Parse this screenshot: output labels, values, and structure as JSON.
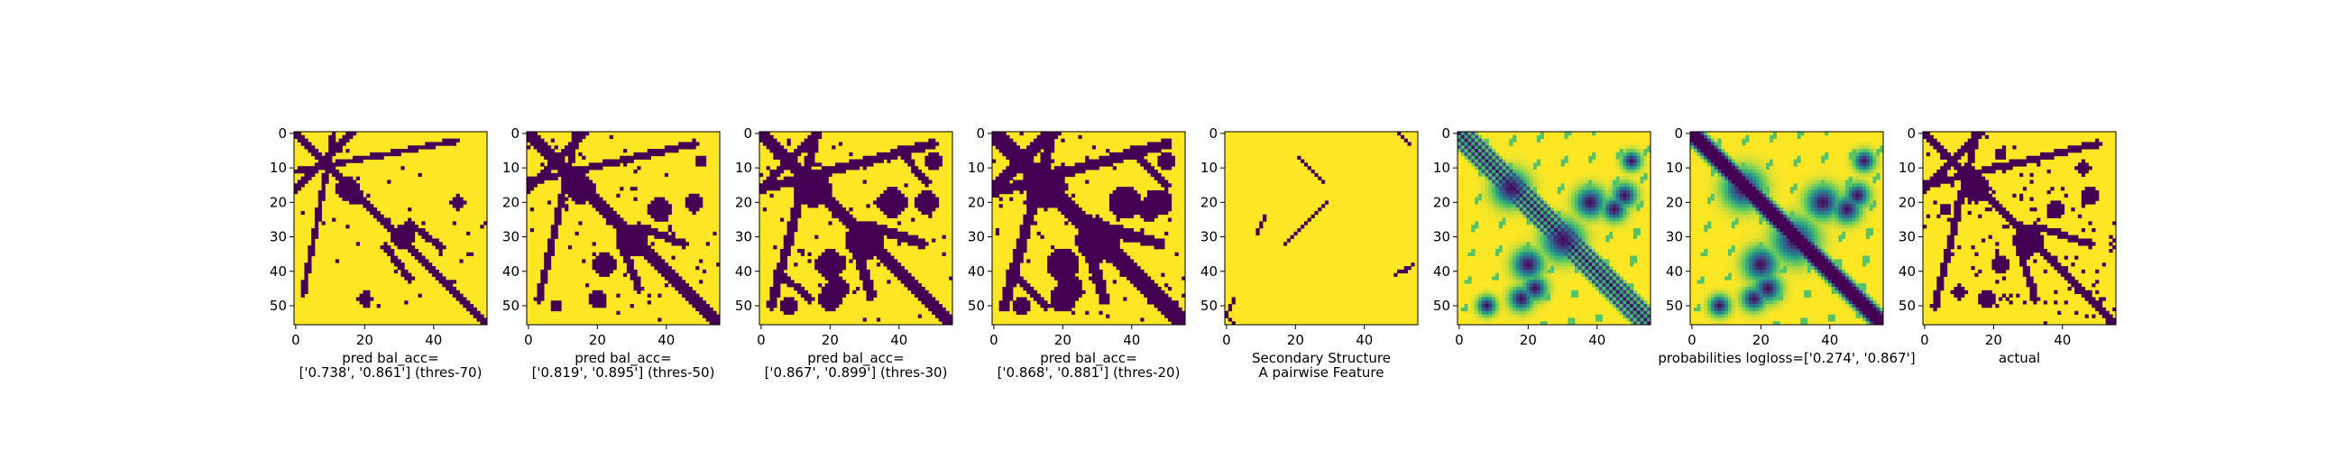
{
  "figure": {
    "colors": {
      "low": "#440154",
      "high": "#fde725",
      "frame": "#000000"
    },
    "n": 56,
    "ticks": [
      0,
      10,
      20,
      30,
      40,
      50
    ],
    "xticks": [
      0,
      20,
      40
    ]
  },
  "chart_data": [
    {
      "type": "heatmap",
      "kind": "binary",
      "title": "",
      "xlabel": "pred bal_acc=\n['0.738', '0.861'] (thres-70)",
      "xlim": [
        0,
        56
      ],
      "ylim": [
        56,
        0
      ],
      "features": {
        "diag_width": 1.6,
        "blobs": [
          [
            16,
            15,
            3.2,
            3.2
          ],
          [
            30,
            31,
            3.5,
            3.5
          ],
          [
            18,
            17,
            2.8,
            2.8
          ]
        ],
        "streaks": [
          [
            1,
            15,
            16,
            0,
            2.2
          ],
          [
            26,
            33,
            33,
            42,
            2.0
          ],
          [
            2,
            47,
            11,
            0,
            1.6
          ]
        ],
        "patches": [
          [
            48,
            20,
            2.2,
            2.2
          ],
          [
            20,
            47,
            2.2,
            2.2
          ]
        ],
        "corner_fill": 0,
        "noise": 0.02
      }
    },
    {
      "type": "heatmap",
      "kind": "binary",
      "title": "",
      "xlabel": "pred bal_acc=\n['0.819', '0.895'] (thres-50)",
      "xlim": [
        0,
        56
      ],
      "ylim": [
        56,
        0
      ],
      "features": {
        "diag_width": 2.0,
        "blobs": [
          [
            16,
            15,
            4.2,
            4.2
          ],
          [
            31,
            30,
            4.8,
            4.8
          ],
          [
            38,
            22,
            3.2,
            3.2
          ],
          [
            22,
            38,
            3.2,
            3.2
          ]
        ],
        "streaks": [
          [
            1,
            15,
            16,
            0,
            2.4
          ],
          [
            27,
            32,
            32,
            45,
            2.2
          ],
          [
            3,
            48,
            14,
            0,
            2.0
          ]
        ],
        "patches": [
          [
            48,
            20,
            2.6,
            2.6
          ],
          [
            20,
            48,
            2.6,
            2.6
          ],
          [
            8,
            50,
            1.8,
            1.8
          ],
          [
            50,
            8,
            1.8,
            1.8
          ]
        ],
        "corner_fill": 0,
        "noise": 0.025
      }
    },
    {
      "type": "heatmap",
      "kind": "binary",
      "title": "",
      "xlabel": "pred bal_acc=\n['0.867', '0.899'] (thres-30)",
      "xlim": [
        0,
        56
      ],
      "ylim": [
        56,
        0
      ],
      "features": {
        "diag_width": 2.6,
        "blobs": [
          [
            16,
            15,
            5.2,
            5.2
          ],
          [
            31,
            30,
            5.6,
            5.6
          ],
          [
            38,
            20,
            4.2,
            4.2
          ],
          [
            20,
            38,
            4.2,
            4.2
          ],
          [
            45,
            22,
            3.2,
            3.2
          ]
        ],
        "streaks": [
          [
            1,
            15,
            16,
            0,
            2.8
          ],
          [
            27,
            32,
            32,
            47,
            2.6
          ],
          [
            3,
            50,
            16,
            0,
            2.6
          ],
          [
            40,
            5,
            48,
            14,
            2.0
          ]
        ],
        "patches": [
          [
            48,
            20,
            3.2,
            3.2
          ],
          [
            20,
            48,
            3.2,
            3.2
          ],
          [
            8,
            50,
            2.4,
            2.4
          ],
          [
            50,
            8,
            2.4,
            2.4
          ]
        ],
        "corner_fill": 0,
        "noise": 0.03
      }
    },
    {
      "type": "heatmap",
      "kind": "binary",
      "title": "",
      "xlabel": "pred bal_acc=\n['0.868', '0.881'] (thres-20)",
      "xlim": [
        0,
        56
      ],
      "ylim": [
        56,
        0
      ],
      "features": {
        "diag_width": 3.0,
        "blobs": [
          [
            16,
            15,
            6.0,
            6.0
          ],
          [
            31,
            30,
            6.2,
            6.2
          ],
          [
            38,
            20,
            4.8,
            4.8
          ],
          [
            20,
            38,
            4.8,
            4.8
          ],
          [
            45,
            22,
            3.8,
            3.8
          ],
          [
            22,
            45,
            3.2,
            3.2
          ]
        ],
        "streaks": [
          [
            1,
            15,
            16,
            0,
            3.2
          ],
          [
            27,
            32,
            32,
            48,
            3.0
          ],
          [
            3,
            50,
            17,
            0,
            3.0
          ],
          [
            40,
            5,
            50,
            15,
            2.4
          ],
          [
            20,
            10,
            8,
            16,
            2.2
          ]
        ],
        "patches": [
          [
            48,
            20,
            3.8,
            3.8
          ],
          [
            20,
            48,
            3.8,
            3.8
          ],
          [
            8,
            50,
            2.8,
            2.8
          ],
          [
            50,
            8,
            2.8,
            2.8
          ]
        ],
        "corner_fill": 0,
        "noise": 0.035
      }
    },
    {
      "type": "heatmap",
      "kind": "sparse",
      "title": "",
      "xlabel": "Secondary Structure\nA pairwise Feature",
      "xlim": [
        0,
        56
      ],
      "ylim": [
        56,
        0
      ],
      "features": {
        "segments": [
          [
            0,
            50,
            3,
            53
          ],
          [
            20,
            29,
            32,
            17
          ],
          [
            7,
            21,
            14,
            28
          ],
          [
            38,
            54,
            40,
            52
          ],
          [
            48,
            2,
            52,
            0
          ],
          [
            53,
            0,
            55,
            2
          ],
          [
            39,
            52,
            41,
            49
          ],
          [
            29,
            9,
            24,
            11
          ]
        ]
      }
    },
    {
      "type": "heatmap",
      "kind": "continuous",
      "title": "",
      "xlabel": "",
      "xlim": [
        0,
        56
      ],
      "ylim": [
        56,
        0
      ],
      "features": {
        "banded_diag": true,
        "blobs": [
          [
            16,
            15,
            4.5,
            4.5
          ],
          [
            31,
            30,
            5.0,
            5.0
          ],
          [
            38,
            20,
            3.8,
            3.8
          ],
          [
            20,
            38,
            3.8,
            3.8
          ],
          [
            45,
            22,
            3.0,
            3.0
          ],
          [
            22,
            45,
            3.0,
            3.0
          ],
          [
            48,
            18,
            3.0,
            3.0
          ],
          [
            18,
            48,
            3.0,
            3.0
          ],
          [
            8,
            50,
            2.4,
            2.4
          ],
          [
            50,
            8,
            2.4,
            2.4
          ]
        ]
      }
    },
    {
      "type": "heatmap",
      "kind": "continuous",
      "title": "",
      "xlabel": "probabilities logloss=['0.274', '0.867']",
      "xlim": [
        0,
        56
      ],
      "ylim": [
        56,
        0
      ],
      "features": {
        "banded_diag": false,
        "diag_width": 2.4,
        "blobs": [
          [
            16,
            15,
            5.0,
            5.0
          ],
          [
            31,
            30,
            5.5,
            5.5
          ],
          [
            38,
            20,
            4.2,
            4.2
          ],
          [
            20,
            38,
            4.2,
            4.2
          ],
          [
            45,
            22,
            3.4,
            3.4
          ],
          [
            22,
            45,
            3.4,
            3.4
          ],
          [
            48,
            18,
            3.0,
            3.0
          ],
          [
            18,
            48,
            3.0,
            3.0
          ],
          [
            8,
            50,
            2.6,
            2.6
          ],
          [
            50,
            8,
            2.6,
            2.6
          ]
        ]
      }
    },
    {
      "type": "heatmap",
      "kind": "binary",
      "title": "",
      "xlabel": "actual",
      "xlim": [
        0,
        56
      ],
      "ylim": [
        56,
        0
      ],
      "features": {
        "diag_width": 1.8,
        "blobs": [
          [
            16,
            15,
            4.0,
            4.0
          ],
          [
            31,
            30,
            4.2,
            4.2
          ],
          [
            38,
            22,
            2.8,
            2.8
          ],
          [
            22,
            38,
            2.8,
            2.8
          ]
        ],
        "streaks": [
          [
            1,
            15,
            16,
            0,
            2.0
          ],
          [
            27,
            32,
            32,
            48,
            2.0
          ],
          [
            3,
            50,
            15,
            0,
            2.0
          ]
        ],
        "patches": [
          [
            48,
            18,
            2.4,
            2.4
          ],
          [
            18,
            48,
            2.4,
            2.4
          ],
          [
            10,
            46,
            2.2,
            2.2
          ],
          [
            46,
            10,
            2.2,
            2.2
          ],
          [
            6,
            22,
            1.8,
            1.8
          ],
          [
            22,
            6,
            1.8,
            1.8
          ]
        ],
        "corner_fill": 0,
        "noise": 0.06
      }
    }
  ]
}
